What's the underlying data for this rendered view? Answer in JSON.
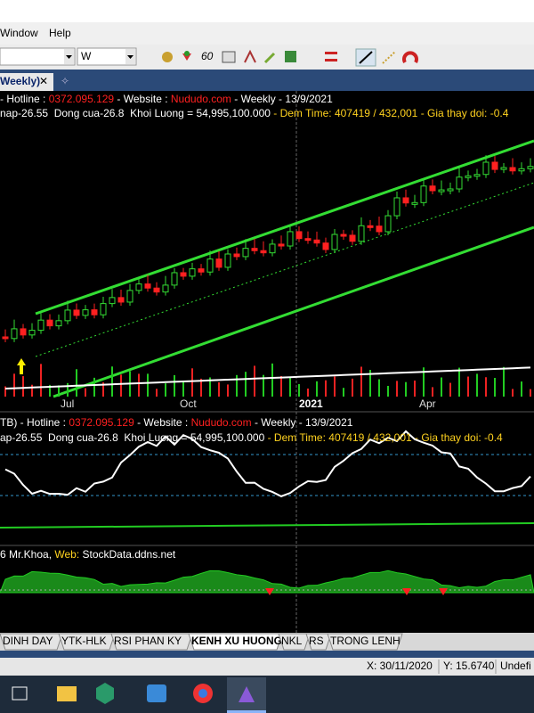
{
  "menu": [
    "Window",
    "Help"
  ],
  "toolbar": {
    "symbol_box": "",
    "interval_box": "W"
  },
  "tab": {
    "label": "Weekly)",
    "close": "✕"
  },
  "chart_header": {
    "line1": [
      "- Hotline : ",
      "0372.095.129",
      " - Website : ",
      "Nududo.com",
      " - Weekly - 13/9/2021"
    ],
    "line2": [
      "nap-26.55  Dong cua-26.8  Khoi Luong = 54,995,100.000",
      " - Dem Time: ",
      "407419 / 432,001",
      " - Gia thay doi: -0.4"
    ]
  },
  "x_axis_labels": [
    "Jul",
    "Oct",
    "2021",
    "Apr"
  ],
  "pane2_header": {
    "line1": [
      "TB) - Hotline : ",
      "0372.095.129",
      " - Website : ",
      "Nududo.com",
      " - Weekly - 13/9/2021"
    ],
    "line2": [
      "ap-26.55  Dong cua-26.8  Khoi Luong = 54,995,100.000",
      " - Dem Time: ",
      "407419 / 432,001",
      " - Gia thay doi: -0.4"
    ]
  },
  "pane3_header": [
    "6 Mr.Khoa, ",
    "Web:",
    " StockData.ddns.net"
  ],
  "sheet_tabs": [
    "DINH DAY",
    "YTK-HLK",
    "RSI PHAN KY",
    "KENH XU HUONG",
    "NKL",
    "RS",
    "TRONG LENH"
  ],
  "status": [
    "X: 30/11/2020",
    "Y: 15.6740",
    "Undefi"
  ]
}
